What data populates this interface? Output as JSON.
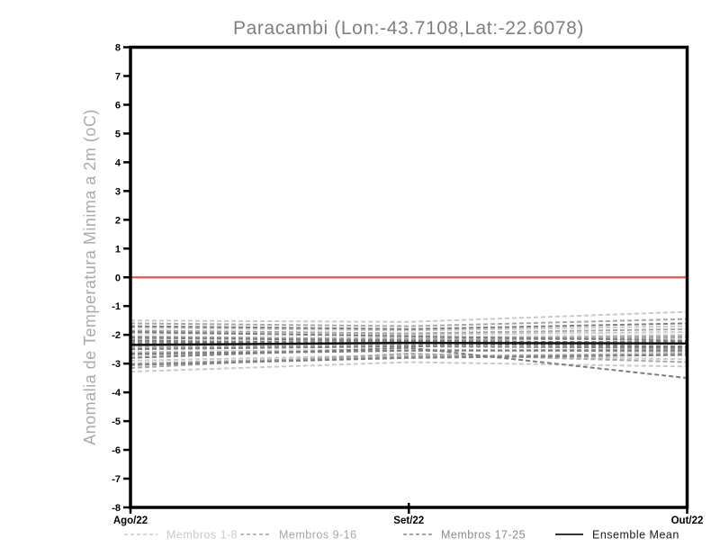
{
  "window": {
    "background": "#ffffff"
  },
  "chart_data": {
    "type": "line",
    "title": "Paracambi (Lon:-43.7108,Lat:-22.6078)",
    "title_color": "#7f7f7f",
    "ylabel": "Anomalia de Temperatura Minima a 2m (oC)",
    "ylabel_color": "#ababab",
    "xlabel": "",
    "ylim": [
      -8,
      8
    ],
    "y_tick_step": 1,
    "y_tick_labels": [
      "-8",
      "-7",
      "-6",
      "-5",
      "-4",
      "-3",
      "-2",
      "-1",
      "0",
      "1",
      "2",
      "3",
      "4",
      "5",
      "6",
      "7",
      "8"
    ],
    "x_tick_labels": [
      "Ago/22",
      "Set/22",
      "Out/22"
    ],
    "x": [
      0,
      1,
      2
    ],
    "grid": false,
    "frame_color": "#000000",
    "zero_line": {
      "y": 0,
      "color": "#f6504b"
    },
    "series_groups": [
      {
        "name": "Membros 1-8",
        "color": "#c9c9c9",
        "style": "dashed",
        "members": [
          [
            -1.5,
            -1.55,
            -1.2
          ],
          [
            -1.75,
            -1.85,
            -1.7
          ],
          [
            -1.95,
            -2.0,
            -1.9
          ],
          [
            -2.15,
            -2.1,
            -2.0
          ],
          [
            -2.4,
            -2.3,
            -2.4
          ],
          [
            -2.6,
            -2.5,
            -2.6
          ],
          [
            -2.9,
            -2.7,
            -2.85
          ],
          [
            -3.28,
            -2.95,
            -3.1
          ]
        ]
      },
      {
        "name": "Membros 9-16",
        "color": "#a6a6a6",
        "style": "dashed",
        "members": [
          [
            -1.6,
            -1.7,
            -1.45
          ],
          [
            -1.85,
            -1.95,
            -1.8
          ],
          [
            -2.05,
            -2.15,
            -2.05
          ],
          [
            -2.25,
            -2.2,
            -2.1
          ],
          [
            -2.45,
            -2.35,
            -2.3
          ],
          [
            -2.7,
            -2.55,
            -2.5
          ],
          [
            -3.0,
            -2.75,
            -2.65
          ],
          [
            -3.15,
            -2.65,
            -2.95
          ]
        ]
      },
      {
        "name": "Membros 17-25",
        "color": "#7d7d7d",
        "style": "dashed",
        "members": [
          [
            -1.7,
            -1.8,
            -1.6
          ],
          [
            -1.9,
            -2.05,
            -2.2
          ],
          [
            -2.1,
            -2.2,
            -2.3
          ],
          [
            -2.3,
            -2.25,
            -2.25
          ],
          [
            -2.5,
            -2.4,
            -2.45
          ],
          [
            -2.65,
            -2.55,
            -2.55
          ],
          [
            -2.8,
            -2.45,
            -3.5
          ],
          [
            -3.05,
            -2.8,
            -2.7
          ],
          [
            -2.2,
            -2.3,
            -2.4
          ]
        ]
      }
    ],
    "ensemble_mean": {
      "name": "Ensemble Mean",
      "color": "#111111",
      "style": "solid",
      "values": [
        -2.35,
        -2.28,
        -2.3
      ]
    },
    "legend": {
      "position": "bottom",
      "items": [
        {
          "label": "Membros 1-8",
          "color": "#c9c9c9",
          "style": "dashed"
        },
        {
          "label": "Membros 9-16",
          "color": "#a6a6a6",
          "style": "dashed"
        },
        {
          "label": "Membros 17-25",
          "color": "#8c8c8c",
          "style": "dashed"
        },
        {
          "label": "Ensemble Mean",
          "color": "#1a1a1a",
          "style": "solid"
        }
      ]
    }
  }
}
